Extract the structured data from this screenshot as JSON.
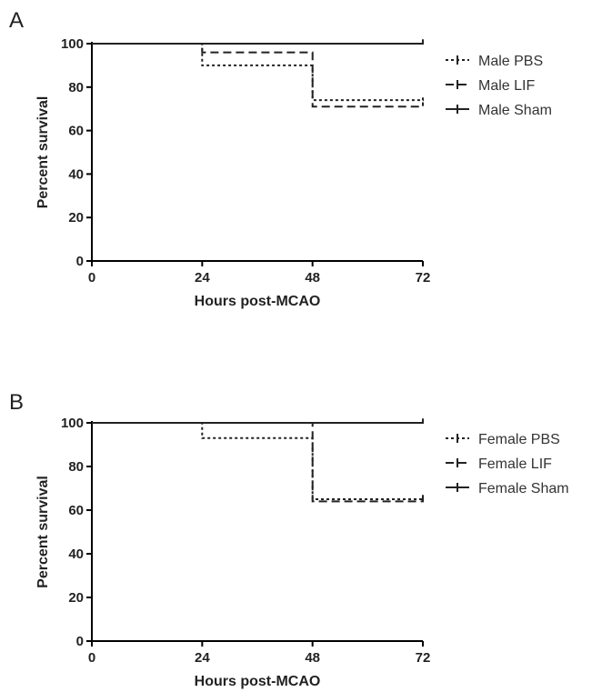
{
  "chart_data": [
    {
      "panel_label": "A",
      "type": "line",
      "step": true,
      "xlabel": "Hours post-MCAO",
      "ylabel": "Percent survival",
      "xlim": [
        0,
        72
      ],
      "ylim": [
        0,
        100
      ],
      "xticks": [
        0,
        24,
        48,
        72
      ],
      "yticks": [
        0,
        20,
        40,
        60,
        80,
        100
      ],
      "series": [
        {
          "name": "Male PBS",
          "dash": "dotted",
          "x": [
            0,
            24,
            24,
            48,
            48,
            72,
            72
          ],
          "y": [
            100,
            100,
            90,
            90,
            74,
            74,
            76
          ]
        },
        {
          "name": "Male LIF",
          "dash": "dashed",
          "x": [
            0,
            24,
            24,
            48,
            48,
            72,
            72
          ],
          "y": [
            100,
            100,
            96,
            96,
            71,
            71,
            73
          ]
        },
        {
          "name": "Male Sham",
          "dash": "solid",
          "x": [
            0,
            72,
            72
          ],
          "y": [
            100,
            100,
            102
          ]
        }
      ]
    },
    {
      "panel_label": "B",
      "type": "line",
      "step": true,
      "xlabel": "Hours post-MCAO",
      "ylabel": "Percent survival",
      "xlim": [
        0,
        72
      ],
      "ylim": [
        0,
        100
      ],
      "xticks": [
        0,
        24,
        48,
        72
      ],
      "yticks": [
        0,
        20,
        40,
        60,
        80,
        100
      ],
      "series": [
        {
          "name": "Female PBS",
          "dash": "dotted",
          "x": [
            0,
            24,
            24,
            48,
            48,
            72,
            72
          ],
          "y": [
            100,
            100,
            93,
            93,
            65,
            65,
            67
          ]
        },
        {
          "name": "Female LIF",
          "dash": "dashed",
          "x": [
            0,
            48,
            48,
            72,
            72
          ],
          "y": [
            100,
            100,
            64,
            64,
            66
          ]
        },
        {
          "name": "Female Sham",
          "dash": "solid",
          "x": [
            0,
            72,
            72
          ],
          "y": [
            100,
            100,
            102
          ]
        }
      ]
    }
  ]
}
